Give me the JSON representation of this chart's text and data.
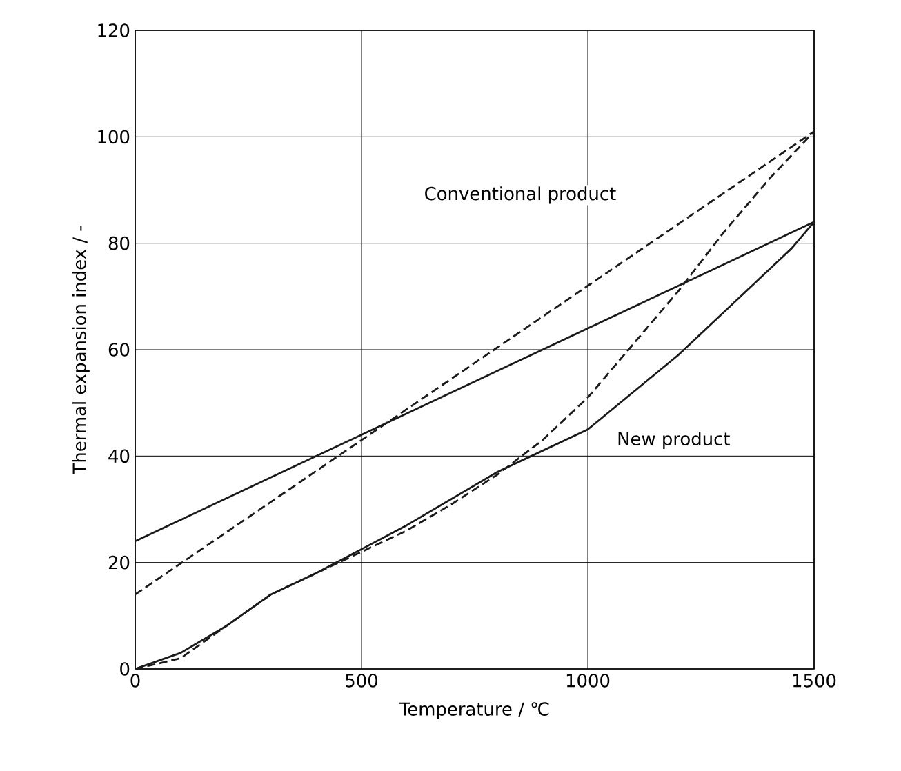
{
  "chart_data": {
    "type": "line",
    "xlabel": "Temperature / ℃",
    "ylabel": "Thermal expansion index / -",
    "xlim": [
      0,
      1500
    ],
    "ylim": [
      0,
      120
    ],
    "xticks": [
      0,
      500,
      1000,
      1500
    ],
    "yticks": [
      0,
      20,
      40,
      60,
      80,
      100,
      120
    ],
    "grid": true,
    "marker": "none",
    "series": [
      {
        "color": "#1a1a1a",
        "line_style": "solid",
        "x": [
          0,
          1500
        ],
        "values": [
          24,
          84
        ]
      },
      {
        "color": "#1a1a1a",
        "line_style": "dashed",
        "x": [
          0,
          1500
        ],
        "values": [
          14,
          101
        ]
      },
      {
        "color": "#1a1a1a",
        "line_style": "solid",
        "x": [
          0,
          100,
          200,
          300,
          400,
          500,
          600,
          700,
          800,
          900,
          1000,
          1100,
          1200,
          1300,
          1400,
          1450,
          1500
        ],
        "values": [
          0,
          3,
          8,
          14,
          18,
          22.5,
          27,
          32,
          37,
          41,
          45,
          52,
          59,
          67,
          75,
          79,
          84
        ]
      },
      {
        "color": "#1a1a1a",
        "line_style": "dashed",
        "x": [
          0,
          100,
          200,
          300,
          400,
          500,
          600,
          700,
          800,
          900,
          1000,
          1100,
          1200,
          1300,
          1400,
          1500
        ],
        "values": [
          0,
          2,
          8,
          14,
          18,
          22,
          26,
          31,
          36.5,
          43,
          51,
          61,
          71,
          82,
          92,
          101
        ]
      }
    ],
    "annotations": [
      "Conventional product",
      "New product"
    ]
  }
}
